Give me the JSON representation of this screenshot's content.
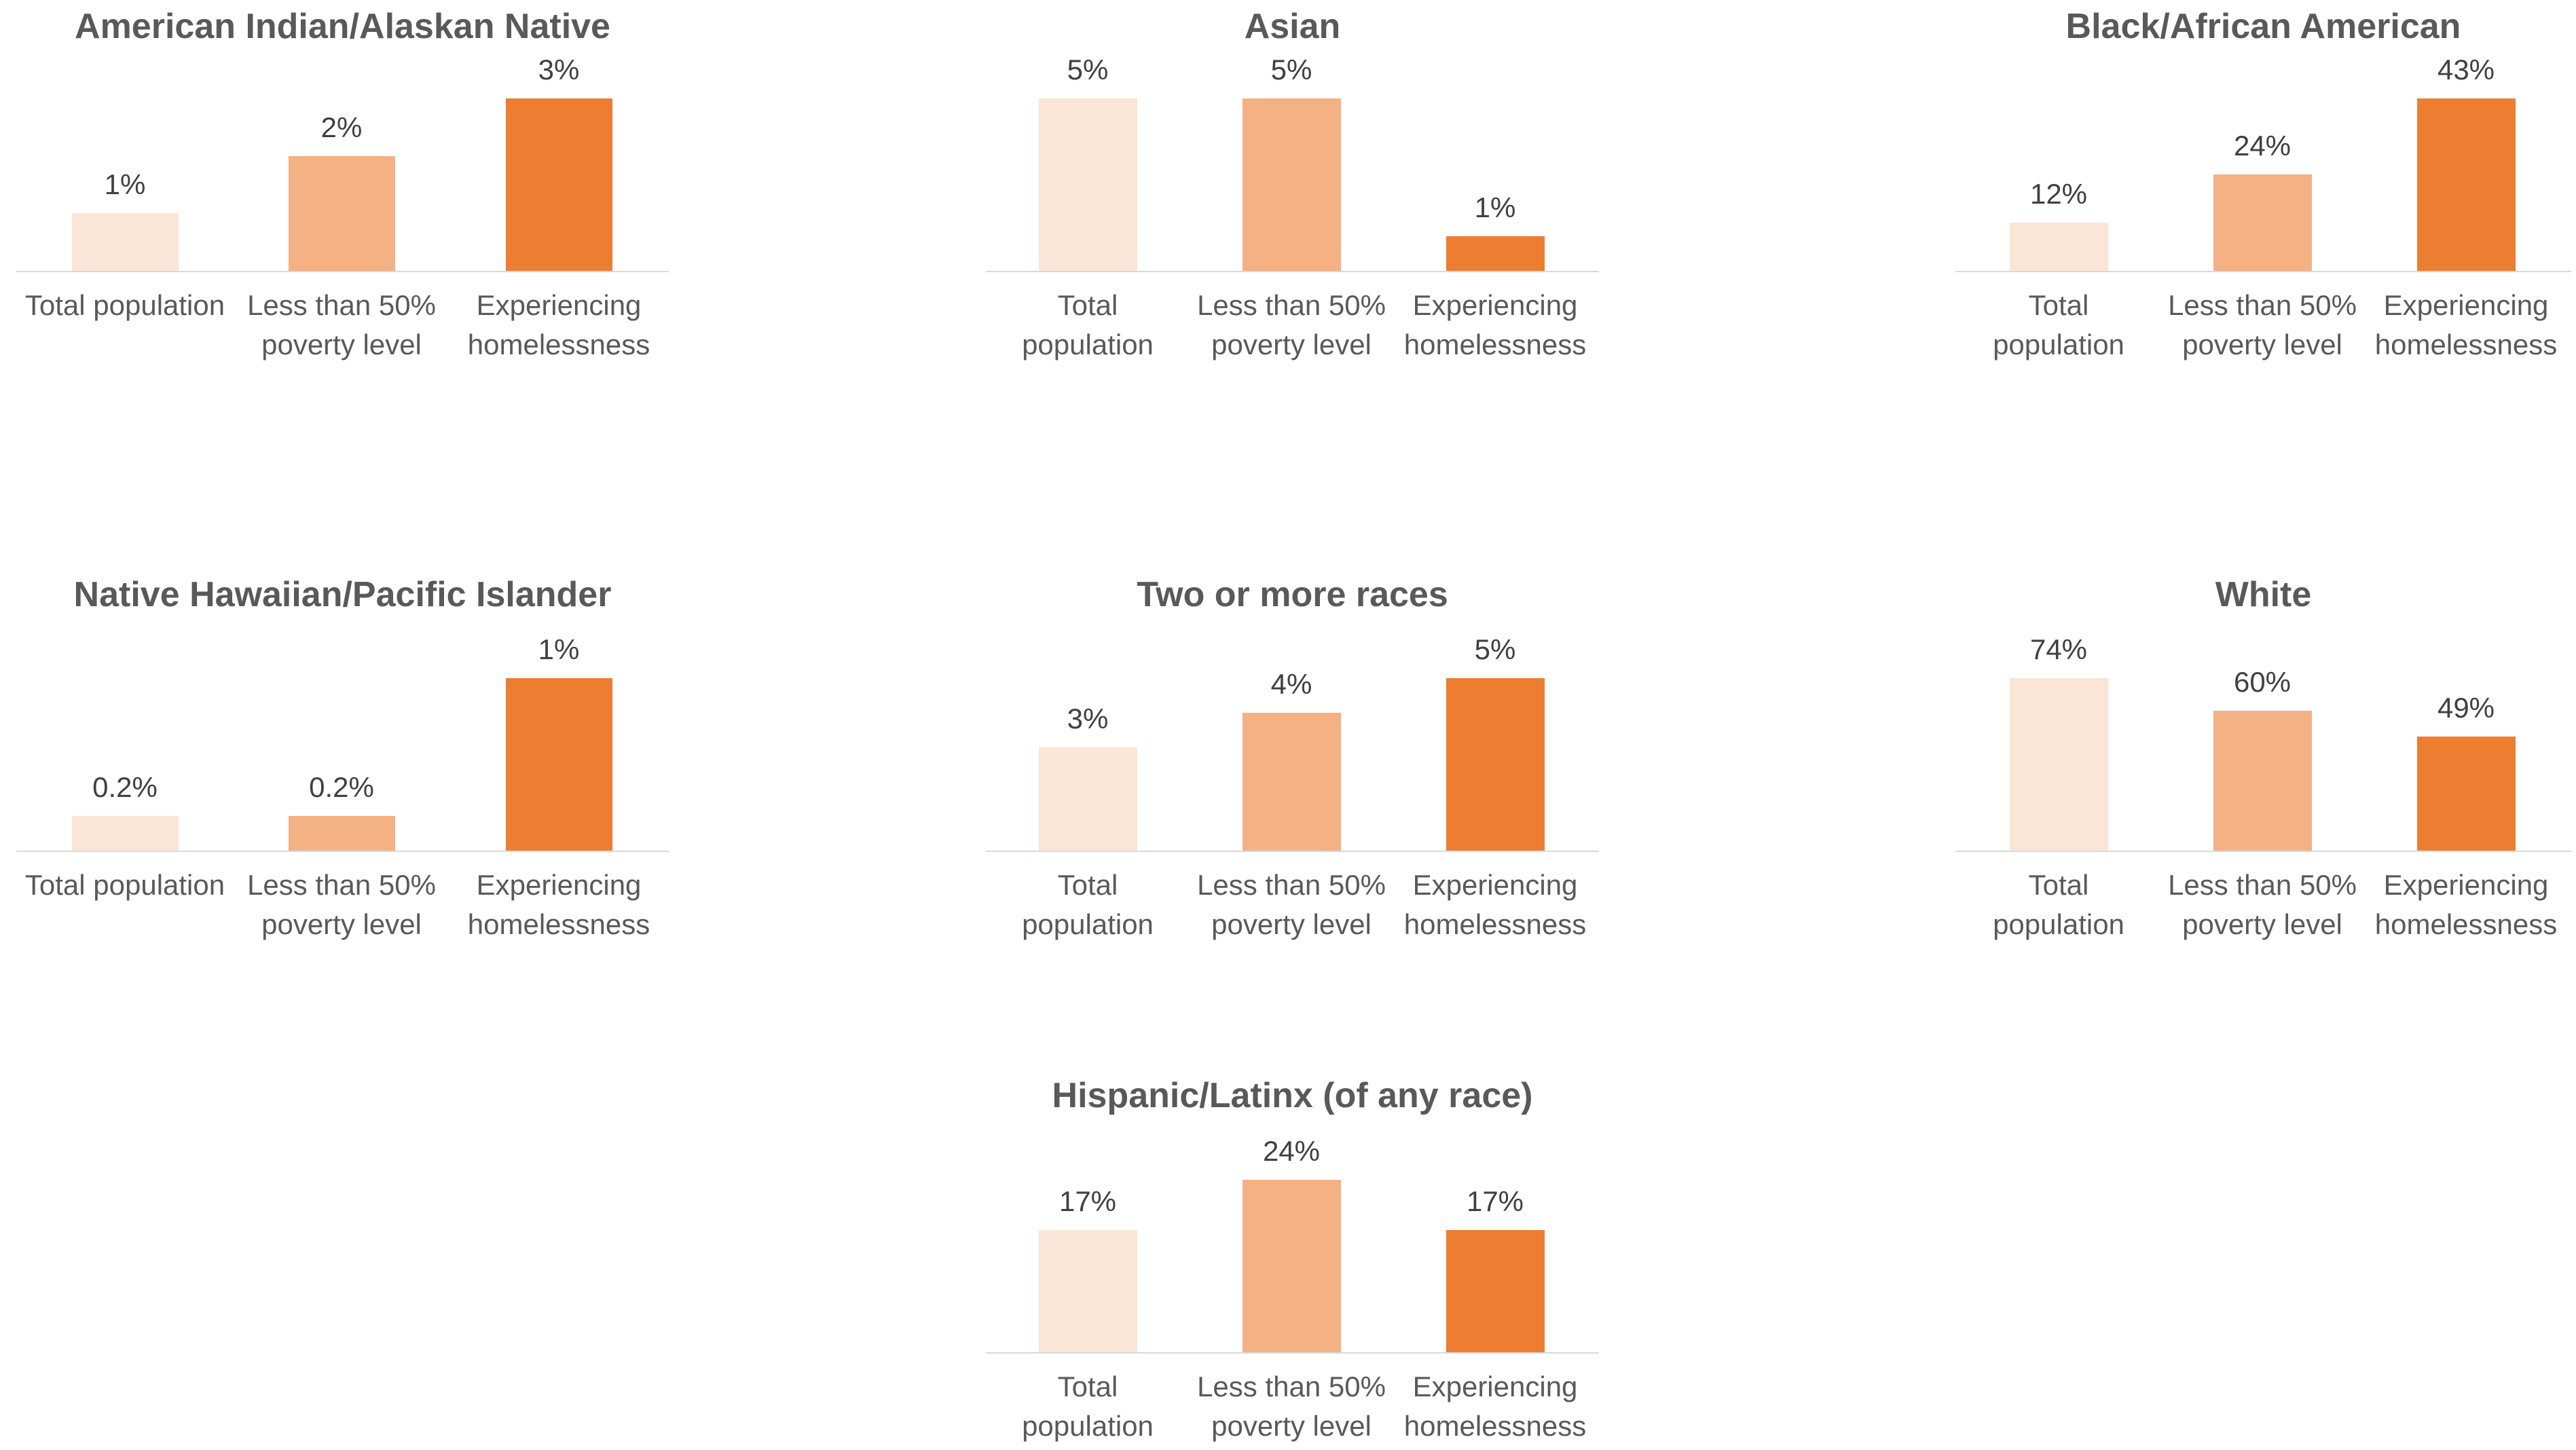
{
  "chart_data": [
    {
      "type": "bar",
      "title": "American Indian/Alaskan Native",
      "categories": [
        "Total population",
        "Less than 50% poverty level",
        "Experiencing homelessness"
      ],
      "values": [
        1,
        2,
        3
      ],
      "value_labels": [
        "1%",
        "2%",
        "3%"
      ],
      "colors": [
        "#fbe5d6",
        "#f4b183",
        "#ed7d31"
      ]
    },
    {
      "type": "bar",
      "title": "Asian",
      "categories": [
        "Total population",
        "Less than 50% poverty level",
        "Experiencing homelessness"
      ],
      "values": [
        5,
        5,
        1
      ],
      "value_labels": [
        "5%",
        "5%",
        "1%"
      ],
      "colors": [
        "#fbe5d6",
        "#f4b183",
        "#ed7d31"
      ]
    },
    {
      "type": "bar",
      "title": "Black/African American",
      "categories": [
        "Total population",
        "Less than 50% poverty level",
        "Experiencing homelessness"
      ],
      "values": [
        12,
        24,
        43
      ],
      "value_labels": [
        "12%",
        "24%",
        "43%"
      ],
      "colors": [
        "#fbe5d6",
        "#f4b183",
        "#ed7d31"
      ]
    },
    {
      "type": "bar",
      "title": "Native Hawaiian/Pacific Islander",
      "categories": [
        "Total population",
        "Less than 50% poverty level",
        "Experiencing homelessness"
      ],
      "values": [
        0.2,
        0.2,
        1
      ],
      "value_labels": [
        "0.2%",
        "0.2%",
        "1%"
      ],
      "colors": [
        "#fbe5d6",
        "#f4b183",
        "#ed7d31"
      ]
    },
    {
      "type": "bar",
      "title": "Two or more races",
      "categories": [
        "Total population",
        "Less than 50% poverty level",
        "Experiencing homelessness"
      ],
      "values": [
        3,
        4,
        5
      ],
      "value_labels": [
        "3%",
        "4%",
        "5%"
      ],
      "colors": [
        "#fbe5d6",
        "#f4b183",
        "#ed7d31"
      ]
    },
    {
      "type": "bar",
      "title": "White",
      "categories": [
        "Total population",
        "Less than 50% poverty level",
        "Experiencing homelessness"
      ],
      "values": [
        74,
        60,
        49
      ],
      "value_labels": [
        "74%",
        "60%",
        "49%"
      ],
      "colors": [
        "#fbe5d6",
        "#f4b183",
        "#ed7d31"
      ]
    },
    {
      "type": "bar",
      "title": "Hispanic/Latinx (of any race)",
      "categories": [
        "Total population",
        "Less than 50% poverty level",
        "Experiencing homelessness"
      ],
      "values": [
        17,
        24,
        17
      ],
      "value_labels": [
        "17%",
        "24%",
        "17%"
      ],
      "colors": [
        "#fbe5d6",
        "#f4b183",
        "#ed7d31"
      ]
    }
  ]
}
